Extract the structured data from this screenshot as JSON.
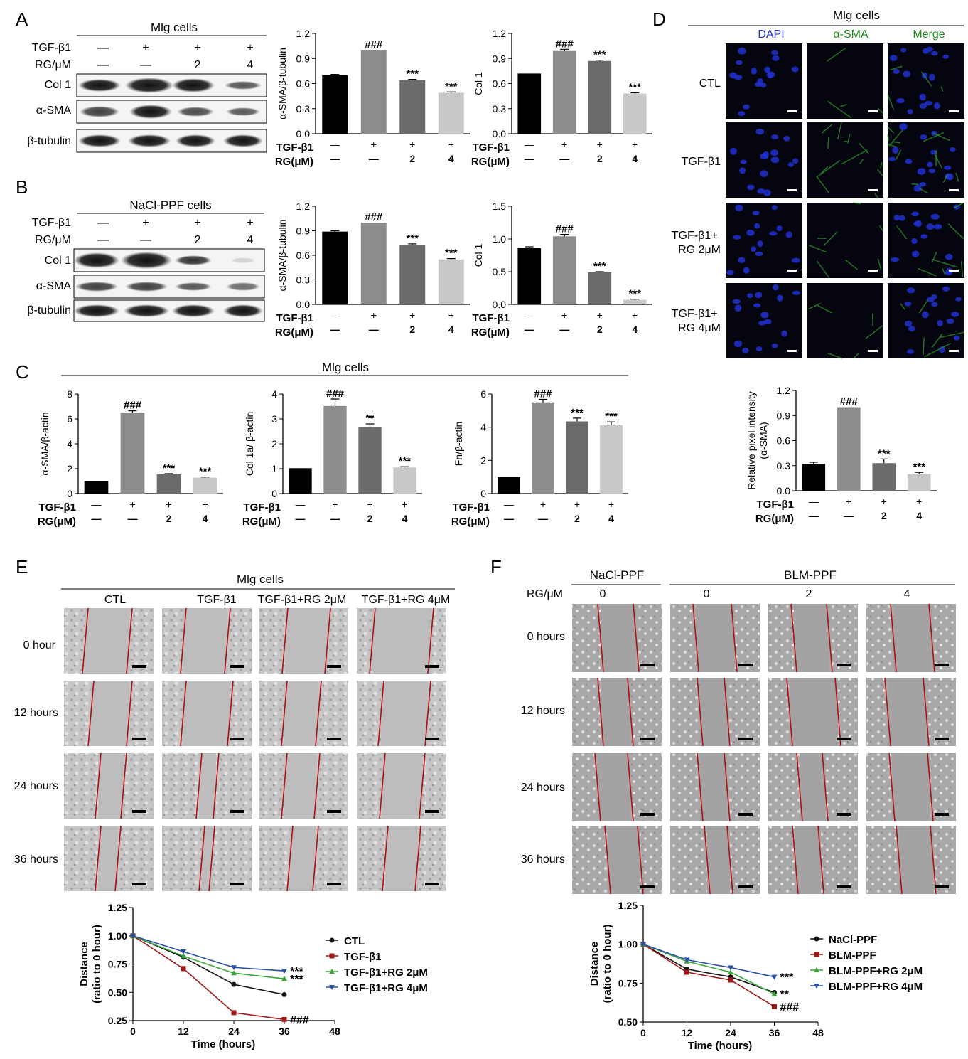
{
  "panel_letters": {
    "A": "A",
    "B": "B",
    "C": "C",
    "D": "D",
    "E": "E",
    "F": "F"
  },
  "colors": {
    "ctl": "#000000",
    "tgf": "#8c8c8c",
    "rg2": "#6b6b6b",
    "rg4": "#c8c8c8",
    "line_ctl": "#111111",
    "line_tgf": "#a01818",
    "line_rg2": "#3aa63a",
    "line_rg4": "#2a4fa8",
    "scratch": "#b01010",
    "dapi": "#2030d0",
    "sma": "#1e8a1e",
    "merge": "#1e8a1e"
  },
  "panel_A": {
    "title": "Mlg cells",
    "row_labels": [
      "TGF-β1",
      "RG/μM"
    ],
    "conditions": [
      [
        "—",
        "+",
        "+",
        "+"
      ],
      [
        "—",
        "—",
        "2",
        "4"
      ]
    ],
    "bands": [
      "Col 1",
      "α-SMA",
      "β-tubulin"
    ]
  },
  "panel_B": {
    "title": "NaCl-PPF cells",
    "row_labels": [
      "TGF-β1",
      "RG/μM"
    ],
    "conditions": [
      [
        "—",
        "+",
        "+",
        "+"
      ],
      [
        "—",
        "—",
        "2",
        "4"
      ]
    ],
    "bands": [
      "Col 1",
      "α-SMA",
      "β-tubulin"
    ]
  },
  "panel_C": {
    "title": "Mlg cells"
  },
  "x_rows": {
    "labels": [
      "TGF-β1",
      "RG(μM)"
    ],
    "values": [
      [
        "—",
        "+",
        "+",
        "+"
      ],
      [
        "—",
        "—",
        "2",
        "4"
      ]
    ]
  },
  "panel_D": {
    "title": "Mlg cells",
    "channels": [
      "DAPI",
      "α-SMA",
      "Merge"
    ],
    "rows": [
      "CTL",
      "TGF-β1",
      "TGF-β1+\nRG 2μM",
      "TGF-β1+\nRG 4μM"
    ]
  },
  "panel_E": {
    "title": "Mlg cells",
    "columns": [
      "CTL",
      "TGF-β1",
      "TGF-β1+RG 2μM",
      "TGF-β1+RG 4μM"
    ],
    "rows": [
      "0 hour",
      "12 hours",
      "24 hours",
      "36 hours"
    ]
  },
  "panel_F": {
    "group1": "NaCl-PPF",
    "group2": "BLM-PPF",
    "rg_label": "RG/μM",
    "columns": [
      "0",
      "0",
      "2",
      "4"
    ],
    "rows": [
      "0 hours",
      "12 hours",
      "24 hours",
      "36 hours"
    ]
  },
  "chart_data": [
    {
      "id": "A1",
      "type": "bar",
      "ylabel": "α-SMA/β-tubulin",
      "ylim": [
        0,
        1.2
      ],
      "ticks": [
        "0.0",
        "0.3",
        "0.6",
        "0.9",
        "1.2"
      ],
      "values": [
        0.7,
        1.0,
        0.64,
        0.49
      ],
      "errors": [
        0.01,
        0.0,
        0.01,
        0.01
      ],
      "sig": [
        "",
        "###",
        "***",
        "***"
      ]
    },
    {
      "id": "A2",
      "type": "bar",
      "ylabel": "Col 1",
      "ylim": [
        0,
        1.2
      ],
      "ticks": [
        "0.0",
        "0.3",
        "0.6",
        "0.9",
        "1.2"
      ],
      "values": [
        0.72,
        0.99,
        0.87,
        0.48
      ],
      "errors": [
        0.0,
        0.02,
        0.01,
        0.01
      ],
      "sig": [
        "",
        "###",
        "***",
        "***"
      ]
    },
    {
      "id": "B1",
      "type": "bar",
      "ylabel": "α-SMA/β-tubulin",
      "ylim": [
        0,
        1.2
      ],
      "ticks": [
        "0.0",
        "0.3",
        "0.6",
        "0.9",
        "1.2"
      ],
      "values": [
        0.89,
        1.0,
        0.73,
        0.55
      ],
      "errors": [
        0.01,
        0.0,
        0.01,
        0.01
      ],
      "sig": [
        "",
        "###",
        "***",
        "***"
      ]
    },
    {
      "id": "B2",
      "type": "bar",
      "ylabel": "Col 1",
      "ylim": [
        0,
        1.5
      ],
      "ticks": [
        "0.0",
        "0.5",
        "1.0",
        "1.5"
      ],
      "values": [
        0.86,
        1.04,
        0.49,
        0.07
      ],
      "errors": [
        0.02,
        0.03,
        0.01,
        0.01
      ],
      "sig": [
        "",
        "###",
        "***",
        "***"
      ]
    },
    {
      "id": "C1",
      "type": "bar",
      "ylabel": "α-SMA/β-actin",
      "ylim": [
        0,
        8
      ],
      "ticks": [
        "0",
        "2",
        "4",
        "6",
        "8"
      ],
      "values": [
        1.0,
        6.5,
        1.55,
        1.28
      ],
      "errors": [
        0.0,
        0.15,
        0.05,
        0.05
      ],
      "sig": [
        "",
        "###",
        "***",
        "***"
      ]
    },
    {
      "id": "C2",
      "type": "bar",
      "ylabel": "Col 1a/ β-actin",
      "ylim": [
        0,
        4
      ],
      "ticks": [
        "0",
        "1",
        "2",
        "3",
        "4"
      ],
      "values": [
        1.02,
        3.52,
        2.68,
        1.05
      ],
      "errors": [
        0.0,
        0.28,
        0.12,
        0.03
      ],
      "sig": [
        "",
        "###",
        "**",
        "***"
      ]
    },
    {
      "id": "C3",
      "type": "bar",
      "ylabel": "Fn/β-actin",
      "ylim": [
        0,
        6
      ],
      "ticks": [
        "0",
        "2",
        "4",
        "6"
      ],
      "values": [
        1.0,
        5.5,
        4.35,
        4.12
      ],
      "errors": [
        0.0,
        0.18,
        0.2,
        0.2
      ],
      "sig": [
        "",
        "###",
        "***",
        "***"
      ]
    },
    {
      "id": "D1",
      "type": "bar",
      "ylabel": "Relative pixel intensity\n(α-SMA)",
      "ylim": [
        0,
        1.2
      ],
      "ticks": [
        "0.0",
        "0.3",
        "0.6",
        "0.9",
        "1.2"
      ],
      "values": [
        0.32,
        1.0,
        0.33,
        0.2
      ],
      "errors": [
        0.02,
        0.0,
        0.05,
        0.02
      ],
      "sig": [
        "",
        "###",
        "***",
        "***"
      ]
    },
    {
      "id": "E1",
      "type": "line",
      "xlabel": "Time (hours)",
      "ylabel": "Distance\n(ratio to 0 hour)",
      "xlim": [
        0,
        48
      ],
      "ylim": [
        0.25,
        1.25
      ],
      "xticks": [
        "0",
        "12",
        "24",
        "36",
        "48"
      ],
      "yticks": [
        "0.25",
        "0.50",
        "0.75",
        "1.00",
        "1.25"
      ],
      "x": [
        0,
        12,
        24,
        36
      ],
      "series": [
        {
          "name": "CTL",
          "values": [
            1.0,
            0.81,
            0.57,
            0.48
          ],
          "sig": ""
        },
        {
          "name": "TGF-β1",
          "values": [
            1.0,
            0.71,
            0.32,
            0.26
          ],
          "sig": "###"
        },
        {
          "name": "TGF-β1+RG 2μM",
          "values": [
            1.0,
            0.82,
            0.67,
            0.62
          ],
          "sig": "***"
        },
        {
          "name": "TGF-β1+RG 4μM",
          "values": [
            1.0,
            0.86,
            0.72,
            0.69
          ],
          "sig": "***"
        }
      ]
    },
    {
      "id": "F1",
      "type": "line",
      "xlabel": "Time (hours)",
      "ylabel": "Distance\n(ratio to 0 hour)",
      "xlim": [
        0,
        48
      ],
      "ylim": [
        0.5,
        1.25
      ],
      "xticks": [
        "0",
        "12",
        "24",
        "36",
        "48"
      ],
      "yticks": [
        "0.50",
        "0.75",
        "1.00",
        "1.25"
      ],
      "x": [
        0,
        12,
        24,
        36
      ],
      "series": [
        {
          "name": "NaCl-PPF",
          "values": [
            1.0,
            0.84,
            0.79,
            0.69
          ],
          "sig": ""
        },
        {
          "name": "BLM-PPF",
          "values": [
            1.0,
            0.82,
            0.77,
            0.6
          ],
          "sig": "###"
        },
        {
          "name": "BLM-PPF+RG 2μM",
          "values": [
            1.0,
            0.89,
            0.82,
            0.68
          ],
          "sig": "**"
        },
        {
          "name": "BLM-PPF+RG 4μM",
          "values": [
            1.0,
            0.9,
            0.85,
            0.79
          ],
          "sig": "***"
        }
      ]
    }
  ]
}
